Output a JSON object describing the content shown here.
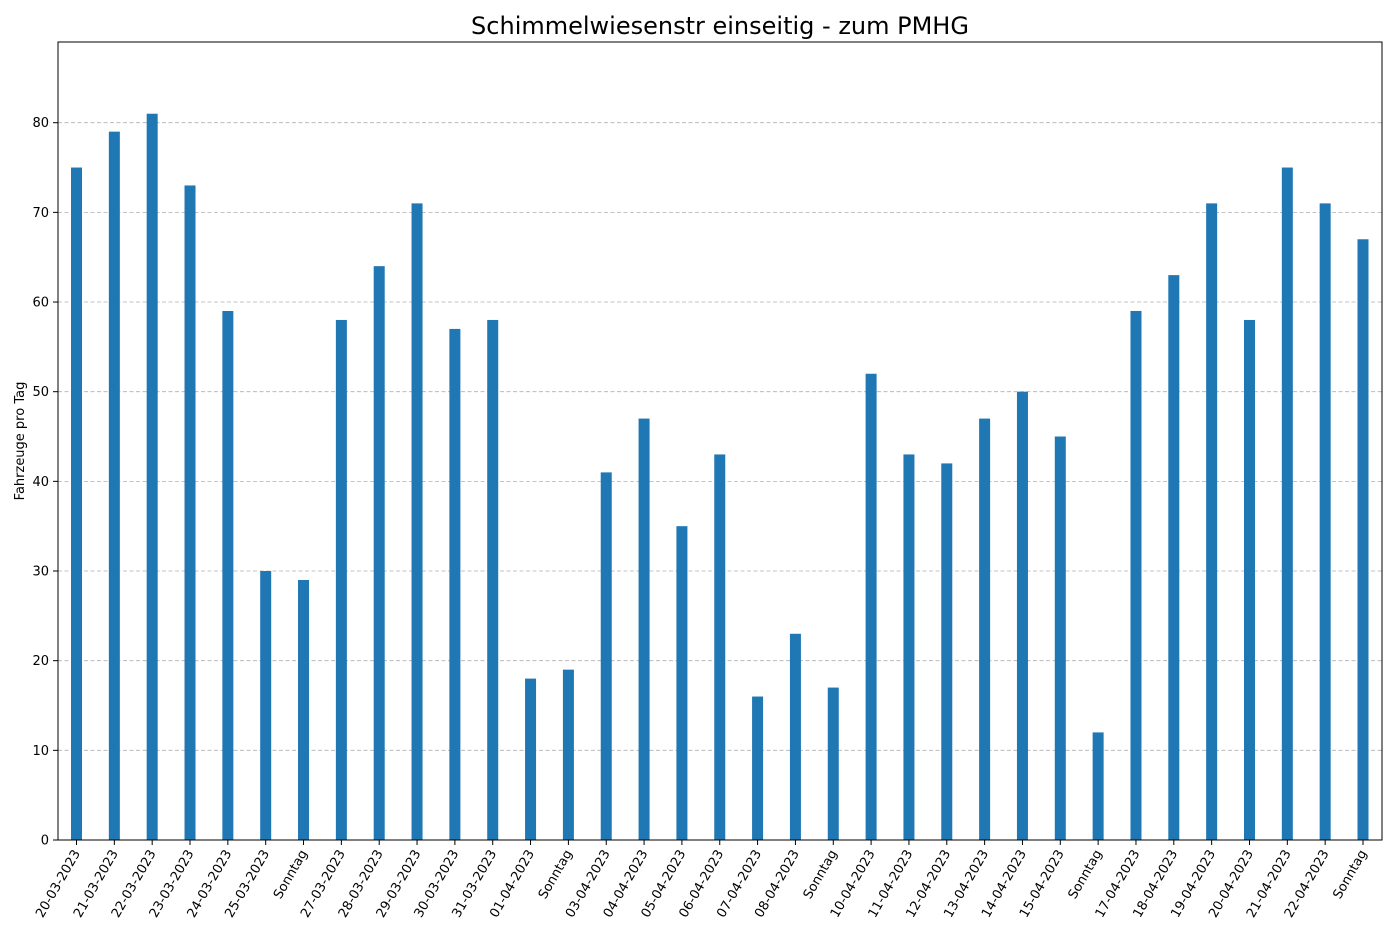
{
  "chart_data": {
    "type": "bar",
    "title": "Schimmelwiesenstr einseitig - zum PMHG",
    "xlabel": "",
    "ylabel": "Fahrzeuge pro Tag",
    "ylim": [
      0,
      89
    ],
    "yticks": [
      0,
      10,
      20,
      30,
      40,
      50,
      60,
      70,
      80
    ],
    "grid": "y-dashed",
    "bar_color": "#1f77b4",
    "categories": [
      "20-03-2023",
      "21-03-2023",
      "22-03-2023",
      "23-03-2023",
      "24-03-2023",
      "25-03-2023",
      "Sonntag",
      "27-03-2023",
      "28-03-2023",
      "29-03-2023",
      "30-03-2023",
      "31-03-2023",
      "01-04-2023",
      "Sonntag",
      "03-04-2023",
      "04-04-2023",
      "05-04-2023",
      "06-04-2023",
      "07-04-2023",
      "08-04-2023",
      "Sonntag",
      "10-04-2023",
      "11-04-2023",
      "12-04-2023",
      "13-04-2023",
      "14-04-2023",
      "15-04-2023",
      "Sonntag",
      "17-04-2023",
      "18-04-2023",
      "19-04-2023",
      "20-04-2023",
      "21-04-2023",
      "22-04-2023",
      "Sonntag"
    ],
    "values": [
      75,
      79,
      81,
      73,
      59,
      30,
      29,
      58,
      64,
      71,
      57,
      58,
      18,
      19,
      41,
      47,
      35,
      43,
      16,
      23,
      17,
      52,
      43,
      42,
      47,
      50,
      45,
      12,
      59,
      63,
      71,
      58,
      75,
      71,
      67
    ]
  }
}
